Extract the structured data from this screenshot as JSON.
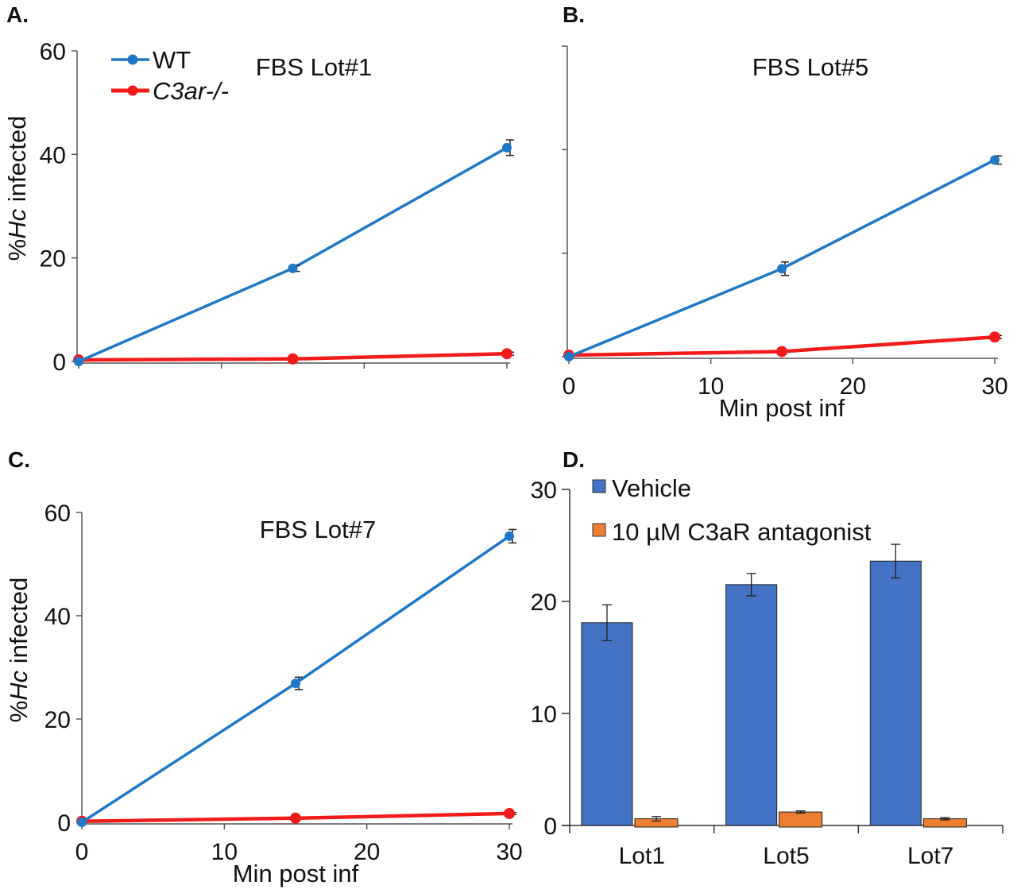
{
  "colors": {
    "wt": "#1f77c8",
    "ko": "#f21b1b",
    "vehicle": "#4472c4",
    "antagonist": "#ed7d31"
  },
  "chart_data": [
    {
      "panel": "A.",
      "type": "line",
      "title": "FBS Lot#1",
      "xlabel": "",
      "ylabel_prefix": "%",
      "ylabel_italic": "Hc",
      "ylabel_suffix": " infected",
      "xlim": [
        0,
        30
      ],
      "ylim": [
        0,
        60
      ],
      "yticks": [
        "0",
        "20",
        "40",
        "60"
      ],
      "xticks": [],
      "legend": [
        "WT",
        "C3ar-/-"
      ],
      "x": [
        0,
        15,
        30
      ],
      "series": [
        {
          "name": "WT",
          "values": [
            0,
            18,
            41.3
          ],
          "err": [
            0,
            0.6,
            1.5
          ]
        },
        {
          "name": "C3ar-/-",
          "values": [
            0.3,
            0.5,
            1.5
          ],
          "err": [
            0,
            0,
            0.3
          ]
        }
      ]
    },
    {
      "panel": "B.",
      "type": "line",
      "title": "FBS Lot#5",
      "xlabel": "Min post inf",
      "ylim": [
        0,
        60
      ],
      "yticks": [],
      "xlim": [
        0,
        30
      ],
      "xticks": [
        "0",
        "10",
        "20",
        "30"
      ],
      "x": [
        0,
        15,
        30
      ],
      "series": [
        {
          "name": "WT",
          "values": [
            0,
            17,
            38
          ],
          "err": [
            0,
            1.3,
            0.8
          ]
        },
        {
          "name": "C3ar-/-",
          "values": [
            0.3,
            1,
            3.8
          ],
          "err": [
            0,
            0,
            0.3
          ]
        }
      ]
    },
    {
      "panel": "C.",
      "type": "line",
      "title": "FBS Lot#7",
      "xlabel": "Min post inf",
      "ylabel_prefix": "%",
      "ylabel_italic": "Hc",
      "ylabel_suffix": " infected",
      "xlim": [
        0,
        30
      ],
      "ylim": [
        0,
        60
      ],
      "yticks": [
        "0",
        "20",
        "40",
        "60"
      ],
      "xticks": [
        "0",
        "10",
        "20",
        "30"
      ],
      "x": [
        0,
        15,
        30
      ],
      "series": [
        {
          "name": "WT",
          "values": [
            0,
            26.9,
            55.4
          ],
          "err": [
            0,
            1.2,
            1.3
          ]
        },
        {
          "name": "C3ar-/-",
          "values": [
            0.2,
            0.8,
            1.7
          ],
          "err": [
            0,
            0,
            0.2
          ]
        }
      ]
    },
    {
      "panel": "D.",
      "type": "bar",
      "title": "",
      "categories": [
        "Lot1",
        "Lot5",
        "Lot7"
      ],
      "ylim": [
        0,
        30
      ],
      "yticks": [
        "0",
        "10",
        "20",
        "30"
      ],
      "legend": [
        "Vehicle",
        "10 µM C3aR antagonist"
      ],
      "series": [
        {
          "name": "Vehicle",
          "values": [
            18.1,
            21.5,
            23.6
          ],
          "err": [
            1.6,
            1.0,
            1.5
          ]
        },
        {
          "name": "10 µM C3aR antagonist",
          "values": [
            0.6,
            1.2,
            0.6
          ],
          "err": [
            0.2,
            0.1,
            0.1
          ]
        }
      ]
    }
  ]
}
